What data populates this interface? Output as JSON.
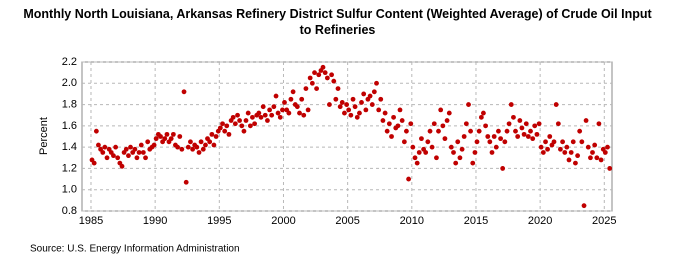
{
  "chart_data": {
    "type": "scatter",
    "title": "Monthly North Louisiana, Arkansas Refinery District Sulfur Content (Weighted Average) of Crude Oil Input to Refineries",
    "ylabel": "Percent",
    "source": "Source: U.S. Energy Information Administration",
    "xlim": [
      1984.3,
      2025.6
    ],
    "ylim": [
      0.8,
      2.2
    ],
    "xticks": [
      1985,
      1990,
      1995,
      2000,
      2005,
      2010,
      2015,
      2020,
      2025
    ],
    "yticks": [
      0.8,
      1.0,
      1.2,
      1.4,
      1.6,
      1.8,
      2.0,
      2.2
    ],
    "grid": true,
    "series": [
      {
        "name": "Sulfur Content",
        "color": "#c00000",
        "x": [
          1985.08,
          1985.25,
          1985.42,
          1985.58,
          1985.75,
          1985.92,
          1986.08,
          1986.25,
          1986.42,
          1986.58,
          1986.75,
          1986.92,
          1987.08,
          1987.25,
          1987.42,
          1987.58,
          1987.75,
          1987.92,
          1988.08,
          1988.25,
          1988.42,
          1988.58,
          1988.75,
          1988.92,
          1989.08,
          1989.25,
          1989.42,
          1989.58,
          1989.75,
          1989.92,
          1990.08,
          1990.25,
          1990.42,
          1990.58,
          1990.75,
          1990.92,
          1991.08,
          1991.25,
          1991.42,
          1991.58,
          1991.75,
          1991.92,
          1992.08,
          1992.25,
          1992.42,
          1992.58,
          1992.75,
          1992.92,
          1993.08,
          1993.25,
          1993.42,
          1993.58,
          1993.75,
          1993.92,
          1994.08,
          1994.25,
          1994.42,
          1994.58,
          1994.75,
          1994.92,
          1995.08,
          1995.25,
          1995.42,
          1995.58,
          1995.75,
          1995.92,
          1996.08,
          1996.25,
          1996.42,
          1996.58,
          1996.75,
          1996.92,
          1997.08,
          1997.25,
          1997.42,
          1997.58,
          1997.75,
          1997.92,
          1998.08,
          1998.25,
          1998.42,
          1998.58,
          1998.75,
          1998.92,
          1999.08,
          1999.25,
          1999.42,
          1999.58,
          1999.75,
          1999.92,
          2000.08,
          2000.25,
          2000.42,
          2000.58,
          2000.75,
          2000.92,
          2001.08,
          2001.25,
          2001.42,
          2001.58,
          2001.75,
          2001.92,
          2002.08,
          2002.25,
          2002.42,
          2002.58,
          2002.75,
          2002.92,
          2003.08,
          2003.25,
          2003.42,
          2003.58,
          2003.75,
          2003.92,
          2004.08,
          2004.25,
          2004.42,
          2004.58,
          2004.75,
          2004.92,
          2005.08,
          2005.25,
          2005.42,
          2005.58,
          2005.75,
          2005.92,
          2006.08,
          2006.25,
          2006.42,
          2006.58,
          2006.75,
          2006.92,
          2007.08,
          2007.25,
          2007.42,
          2007.58,
          2007.75,
          2007.92,
          2008.08,
          2008.25,
          2008.42,
          2008.58,
          2008.75,
          2008.92,
          2009.08,
          2009.25,
          2009.42,
          2009.58,
          2009.75,
          2009.92,
          2010.08,
          2010.25,
          2010.42,
          2010.58,
          2010.75,
          2010.92,
          2011.08,
          2011.25,
          2011.42,
          2011.58,
          2011.75,
          2011.92,
          2012.08,
          2012.25,
          2012.42,
          2012.58,
          2012.75,
          2012.92,
          2013.08,
          2013.25,
          2013.42,
          2013.58,
          2013.75,
          2013.92,
          2014.08,
          2014.25,
          2014.42,
          2014.58,
          2014.75,
          2014.92,
          2015.08,
          2015.25,
          2015.42,
          2015.58,
          2015.75,
          2015.92,
          2016.08,
          2016.25,
          2016.42,
          2016.58,
          2016.75,
          2016.92,
          2017.08,
          2017.25,
          2017.42,
          2017.58,
          2017.75,
          2017.92,
          2018.08,
          2018.25,
          2018.42,
          2018.58,
          2018.75,
          2018.92,
          2019.08,
          2019.25,
          2019.42,
          2019.58,
          2019.75,
          2019.92,
          2020.08,
          2020.25,
          2020.42,
          2020.58,
          2020.75,
          2020.92,
          2021.08,
          2021.25,
          2021.42,
          2021.58,
          2021.75,
          2021.92,
          2022.08,
          2022.25,
          2022.42,
          2022.58,
          2022.75,
          2022.92,
          2023.08,
          2023.25,
          2023.42,
          2023.58,
          2023.75,
          2023.92,
          2024.08,
          2024.25,
          2024.42,
          2024.58,
          2024.75,
          2024.92,
          2025.08,
          2025.25,
          2025.42
        ],
        "values": [
          1.28,
          1.25,
          1.55,
          1.42,
          1.38,
          1.35,
          1.4,
          1.3,
          1.38,
          1.35,
          1.32,
          1.4,
          1.3,
          1.25,
          1.22,
          1.35,
          1.38,
          1.32,
          1.4,
          1.35,
          1.38,
          1.3,
          1.35,
          1.42,
          1.35,
          1.3,
          1.45,
          1.38,
          1.4,
          1.42,
          1.48,
          1.52,
          1.5,
          1.45,
          1.48,
          1.52,
          1.45,
          1.48,
          1.52,
          1.42,
          1.4,
          1.5,
          1.38,
          1.92,
          1.07,
          1.4,
          1.45,
          1.38,
          1.42,
          1.4,
          1.35,
          1.45,
          1.38,
          1.42,
          1.48,
          1.45,
          1.52,
          1.42,
          1.5,
          1.55,
          1.58,
          1.62,
          1.55,
          1.6,
          1.52,
          1.65,
          1.68,
          1.62,
          1.7,
          1.65,
          1.6,
          1.55,
          1.65,
          1.72,
          1.6,
          1.68,
          1.62,
          1.7,
          1.72,
          1.68,
          1.78,
          1.7,
          1.65,
          1.75,
          1.7,
          1.78,
          1.88,
          1.72,
          1.68,
          1.75,
          1.82,
          1.75,
          1.72,
          1.85,
          1.92,
          1.8,
          1.78,
          1.72,
          1.85,
          1.7,
          1.95,
          1.75,
          2.05,
          2.0,
          2.1,
          1.95,
          2.08,
          2.12,
          2.15,
          2.1,
          2.05,
          1.8,
          2.08,
          2.02,
          1.85,
          1.95,
          1.78,
          1.82,
          1.72,
          1.8,
          1.75,
          1.7,
          1.85,
          1.78,
          1.68,
          1.72,
          1.82,
          1.9,
          1.75,
          1.85,
          1.88,
          1.8,
          1.92,
          2.0,
          1.75,
          1.85,
          1.65,
          1.72,
          1.55,
          1.62,
          1.5,
          1.68,
          1.58,
          1.6,
          1.75,
          1.65,
          1.45,
          1.55,
          1.1,
          1.62,
          1.4,
          1.3,
          1.25,
          1.35,
          1.48,
          1.38,
          1.35,
          1.45,
          1.55,
          1.4,
          1.62,
          1.3,
          1.55,
          1.75,
          1.6,
          1.48,
          1.65,
          1.72,
          1.4,
          1.35,
          1.25,
          1.45,
          1.3,
          1.38,
          1.5,
          1.62,
          1.8,
          1.55,
          1.25,
          1.35,
          1.45,
          1.55,
          1.68,
          1.72,
          1.6,
          1.5,
          1.45,
          1.35,
          1.5,
          1.4,
          1.55,
          1.48,
          1.2,
          1.45,
          1.55,
          1.62,
          1.8,
          1.68,
          1.55,
          1.5,
          1.65,
          1.58,
          1.52,
          1.62,
          1.5,
          1.55,
          1.48,
          1.6,
          1.52,
          1.62,
          1.4,
          1.35,
          1.45,
          1.38,
          1.5,
          1.42,
          1.45,
          1.8,
          1.62,
          1.38,
          1.45,
          1.35,
          1.4,
          1.28,
          1.35,
          1.45,
          1.25,
          1.32,
          1.55,
          1.45,
          0.85,
          1.65,
          1.4,
          1.3,
          1.35,
          1.42,
          1.3,
          1.62,
          1.28,
          1.38,
          1.35,
          1.4,
          1.2
        ]
      }
    ]
  }
}
